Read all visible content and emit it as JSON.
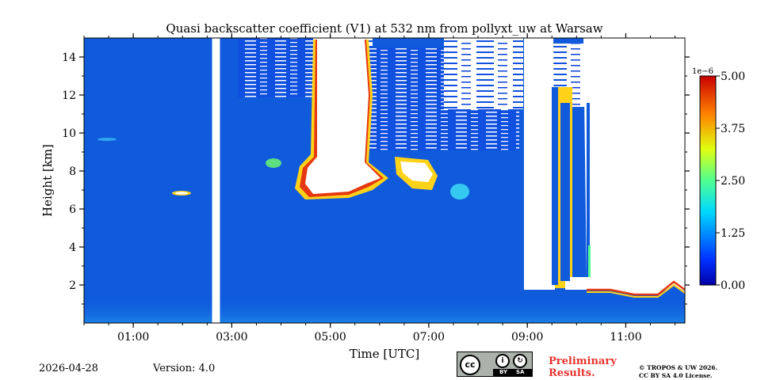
{
  "chart_data": {
    "type": "heatmap",
    "title": "Quasi backscatter coefficient (V1) at 532 nm from pollyxt_uw at Warsaw",
    "xlabel": "Time [UTC]",
    "ylabel": "Height [km]",
    "xlim_hours": [
      0.0,
      12.2
    ],
    "ylim_km": [
      0.0,
      15.0
    ],
    "x_ticks": [
      {
        "value": 1,
        "label": "01:00"
      },
      {
        "value": 3,
        "label": "03:00"
      },
      {
        "value": 5,
        "label": "05:00"
      },
      {
        "value": 7,
        "label": "07:00"
      },
      {
        "value": 9,
        "label": "09:00"
      },
      {
        "value": 11,
        "label": "11:00"
      }
    ],
    "y_ticks": [
      {
        "value": 2,
        "label": "2"
      },
      {
        "value": 4,
        "label": "4"
      },
      {
        "value": 6,
        "label": "6"
      },
      {
        "value": 8,
        "label": "8"
      },
      {
        "value": 10,
        "label": "10"
      },
      {
        "value": 12,
        "label": "12"
      },
      {
        "value": 14,
        "label": "14"
      }
    ],
    "colorbar": {
      "exponent_label": "1e−6",
      "range": [
        0.0,
        5.0
      ],
      "ticks": [
        "0.00",
        "1.25",
        "2.50",
        "3.75",
        "5.00"
      ],
      "colormap": "jet"
    },
    "gaps_no_data": [
      {
        "start_h": 2.6,
        "end_h": 2.76
      }
    ],
    "features": [
      {
        "name": "cloud-layer",
        "start_h": 4.4,
        "end_h": 6.0,
        "base_km": 6.6,
        "top_km": 15.0
      },
      {
        "name": "cloud-cell",
        "start_h": 6.4,
        "end_h": 7.1,
        "base_km": 7.4,
        "top_km": 8.6
      },
      {
        "name": "elevated-thin-layer",
        "start_h": 1.75,
        "end_h": 2.1,
        "height_km": 6.7
      },
      {
        "name": "low-cloud",
        "start_h": 8.8,
        "end_h": 12.2,
        "base_km": 1.7,
        "top_km": 15.0
      }
    ]
  },
  "footer": {
    "date": "2026-04-28",
    "version": "Version: 4.0",
    "preliminary_line1": "Preliminary",
    "preliminary_line2": "Results.",
    "copyright_line1": "© TROPOS & UW 2026.",
    "copyright_line2": "CC BY SA 4.0 License.",
    "license_badge": {
      "by": "BY",
      "sa": "SA"
    }
  }
}
